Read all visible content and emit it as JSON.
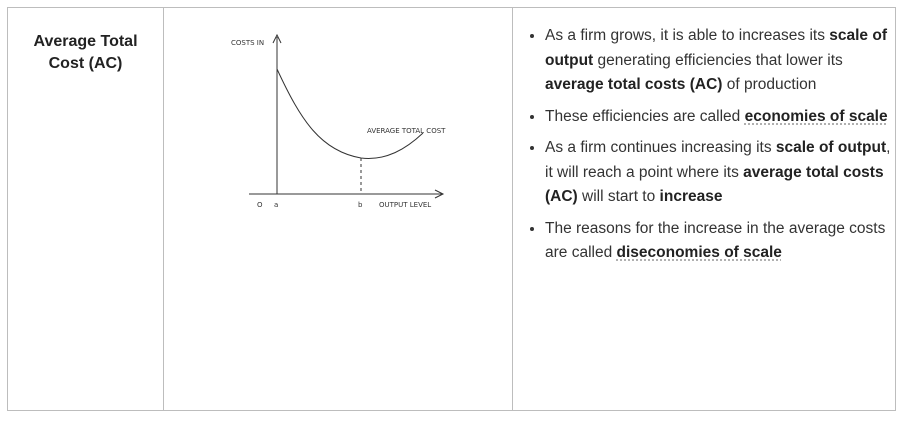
{
  "row": {
    "heading": "Average Total Cost (AC)",
    "diagram": {
      "y_axis_label": "COSTS IN",
      "curve_label": "AVERAGE TOTAL COST",
      "origin": "O",
      "point_a": "a",
      "point_b": "b",
      "x_axis_label": "OUTPUT LEVEL"
    },
    "bullets": [
      [
        {
          "text": "As a firm grows, it is able to increases its ",
          "style": "normal"
        },
        {
          "text": "scale of output",
          "style": "bold"
        },
        {
          "text": " generating efficiencies that lower its ",
          "style": "normal"
        },
        {
          "text": "average total costs (AC)",
          "style": "bold"
        },
        {
          "text": " of production",
          "style": "normal"
        }
      ],
      [
        {
          "text": "These efficiencies are called ",
          "style": "normal"
        },
        {
          "text": "economies of scale",
          "style": "link"
        }
      ],
      [
        {
          "text": "As a firm continues increasing its ",
          "style": "normal"
        },
        {
          "text": "scale of output",
          "style": "bold"
        },
        {
          "text": ", it will reach a point where its ",
          "style": "normal"
        },
        {
          "text": "average total costs (AC)",
          "style": "bold"
        },
        {
          "text": " will start to ",
          "style": "normal"
        },
        {
          "text": "increase",
          "style": "bold"
        }
      ],
      [
        {
          "text": "The reasons for the increase in the average costs are called ",
          "style": "normal"
        },
        {
          "text": "diseconomies of scale",
          "style": "link"
        }
      ]
    ]
  }
}
